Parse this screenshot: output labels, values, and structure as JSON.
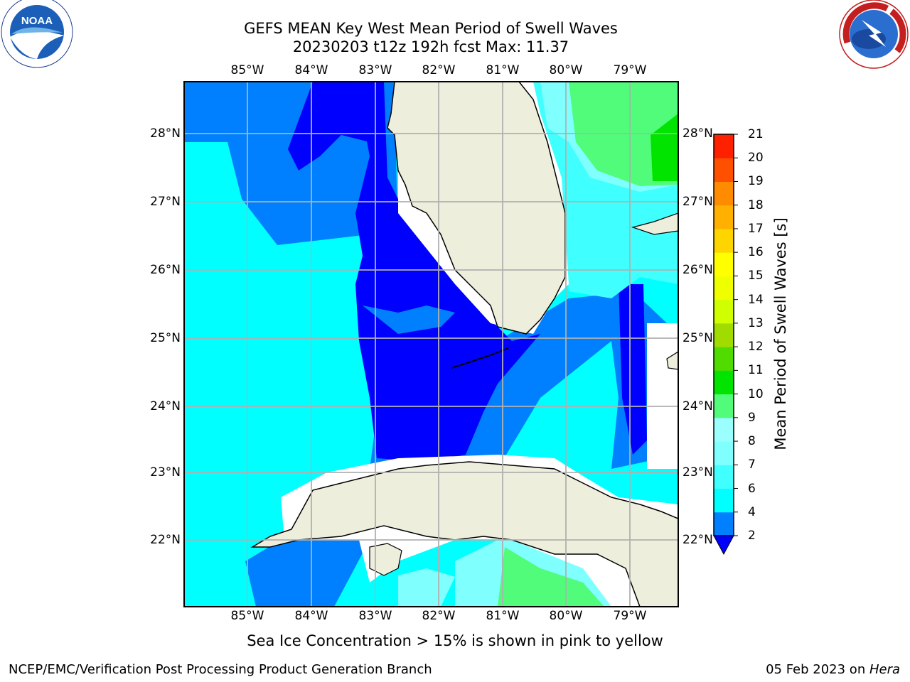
{
  "header": {
    "title_line1": "GEFS MEAN Key West Mean Period of Swell Waves",
    "title_line2": "20230203 t12z 192h fcst   Max: 11.37"
  },
  "logos": {
    "left": "noaa-logo",
    "right": "nws-logo"
  },
  "map": {
    "lon_ticks": [
      "85°W",
      "84°W",
      "83°W",
      "82°W",
      "81°W",
      "80°W",
      "79°W"
    ],
    "lat_ticks": [
      "28°N",
      "27°N",
      "26°N",
      "25°N",
      "24°N",
      "23°N",
      "22°N"
    ],
    "land_color": "#eeeedc",
    "no_data_color": "#ffffff"
  },
  "colorbar": {
    "title": "Mean Period of Swell Waves [s]",
    "levels": [
      "2",
      "4",
      "6",
      "7",
      "8",
      "9",
      "10",
      "11",
      "12",
      "13",
      "14",
      "15",
      "16",
      "17",
      "18",
      "19",
      "20",
      "21"
    ],
    "colors": [
      "#0000ff",
      "#0080ff",
      "#00ffff",
      "#40ffff",
      "#80ffff",
      "#9bffff",
      "#50fc7a",
      "#00e400",
      "#50dc00",
      "#a0dc00",
      "#cfff00",
      "#f0ff00",
      "#ffff00",
      "#ffd500",
      "#ffb000",
      "#ff8c00",
      "#ff5000",
      "#ff2000",
      "#ff0000"
    ]
  },
  "footer": {
    "note": "Sea Ice Concentration > 15% is shown in pink to yellow",
    "credit": "NCEP/EMC/Verification Post Processing Product Generation Branch",
    "date": "05 Feb 2023 on ",
    "host": "Hera"
  }
}
